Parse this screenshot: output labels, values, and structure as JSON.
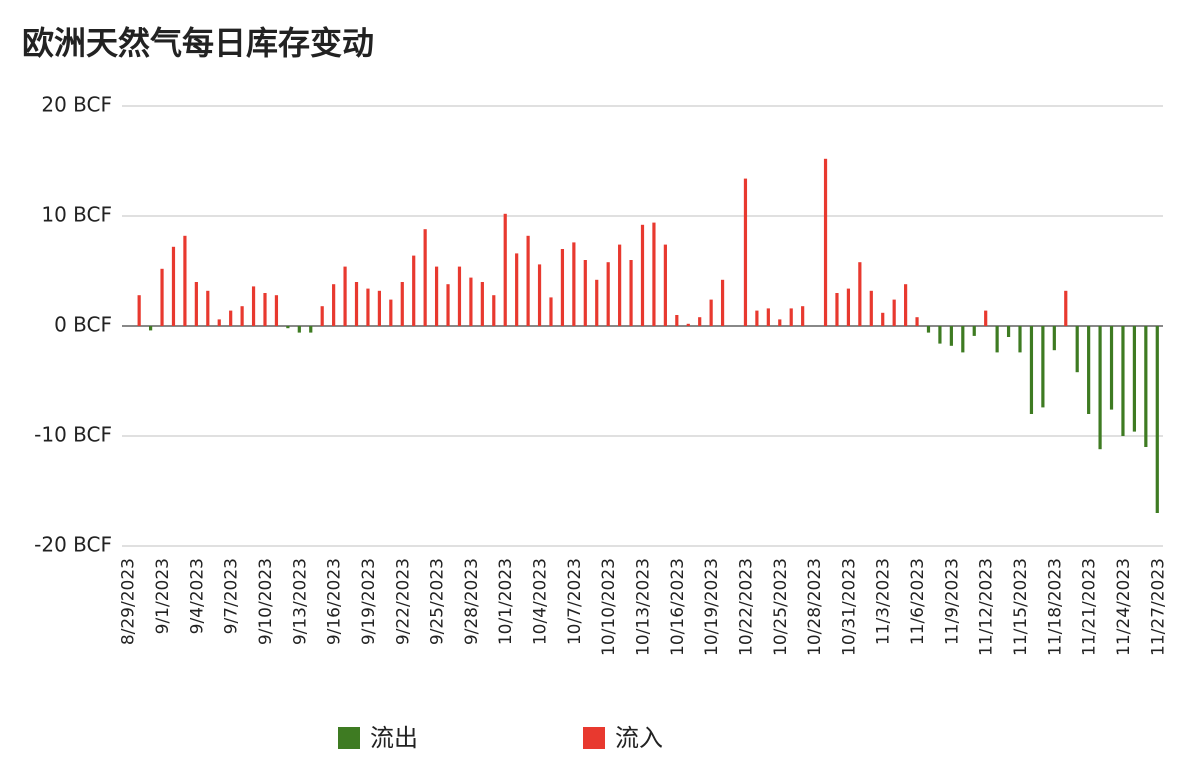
{
  "chart_data": {
    "type": "bar",
    "title": "欧洲天然气每日库存变动",
    "categories": [
      "8/29/2023",
      null,
      null,
      "9/1/2023",
      null,
      null,
      "9/4/2023",
      null,
      null,
      "9/7/2023",
      null,
      null,
      "9/10/2023",
      null,
      null,
      "9/13/2023",
      null,
      null,
      "9/16/2023",
      null,
      null,
      "9/19/2023",
      null,
      null,
      "9/22/2023",
      null,
      null,
      "9/25/2023",
      null,
      null,
      "9/28/2023",
      null,
      null,
      "10/1/2023",
      null,
      null,
      "10/4/2023",
      null,
      null,
      "10/7/2023",
      null,
      null,
      "10/10/2023",
      null,
      null,
      "10/13/2023",
      null,
      null,
      "10/16/2023",
      null,
      null,
      "10/19/2023",
      null,
      null,
      "10/22/2023",
      null,
      null,
      "10/25/2023",
      null,
      null,
      "10/28/2023",
      null,
      null,
      "10/31/2023",
      null,
      null,
      "11/3/2023",
      null,
      null,
      "11/6/2023",
      null,
      null,
      "11/9/2023",
      null,
      null,
      "11/12/2023",
      null,
      null,
      "11/15/2023",
      null,
      null,
      "11/18/2023",
      null,
      null,
      "11/21/2023",
      null,
      null,
      "11/24/2023",
      null,
      null,
      "11/27/2023"
    ],
    "series": [
      {
        "name": "流出",
        "color": "#3e7b22",
        "values": [
          null,
          null,
          -0.4,
          null,
          null,
          null,
          null,
          null,
          null,
          null,
          null,
          null,
          null,
          null,
          -0.2,
          -0.6,
          -0.6,
          null,
          null,
          null,
          null,
          null,
          null,
          null,
          null,
          null,
          null,
          null,
          null,
          null,
          null,
          null,
          null,
          null,
          null,
          null,
          null,
          null,
          null,
          null,
          null,
          null,
          null,
          null,
          null,
          null,
          null,
          null,
          null,
          null,
          null,
          null,
          null,
          null,
          null,
          null,
          null,
          null,
          null,
          null,
          null,
          null,
          null,
          null,
          null,
          null,
          null,
          null,
          null,
          null,
          -0.6,
          -1.6,
          -1.8,
          -2.4,
          -0.9,
          null,
          -2.4,
          -1.0,
          -2.4,
          -8.0,
          -7.4,
          -2.2,
          null,
          -4.2,
          -8.0,
          -11.2,
          -7.6,
          -10.0,
          -9.6,
          -11.0,
          -17.0
        ]
      },
      {
        "name": "流入",
        "color": "#e8392f",
        "values": [
          null,
          2.8,
          null,
          5.2,
          7.2,
          8.2,
          4.0,
          3.2,
          0.6,
          1.4,
          1.8,
          3.6,
          3.0,
          2.8,
          null,
          null,
          null,
          1.8,
          3.8,
          5.4,
          4.0,
          3.4,
          3.2,
          2.4,
          4.0,
          6.4,
          8.8,
          5.4,
          3.8,
          5.4,
          4.4,
          4.0,
          2.8,
          10.2,
          6.6,
          8.2,
          5.6,
          2.6,
          7.0,
          7.6,
          6.0,
          4.2,
          5.8,
          7.4,
          6.0,
          9.2,
          9.4,
          7.4,
          1.0,
          0.2,
          0.8,
          2.4,
          4.2,
          null,
          13.4,
          1.4,
          1.6,
          0.6,
          1.6,
          1.8,
          null,
          15.2,
          3.0,
          3.4,
          5.8,
          3.2,
          1.2,
          2.4,
          3.8,
          0.8,
          null,
          null,
          null,
          null,
          null,
          1.4,
          null,
          null,
          null,
          null,
          null,
          null,
          3.2,
          null,
          null,
          null,
          null,
          null,
          null,
          null,
          null
        ]
      }
    ],
    "ylim": [
      -20,
      20
    ],
    "yticks": [
      {
        "value": -20,
        "label": "-20 BCF"
      },
      {
        "value": -10,
        "label": "-10 BCF"
      },
      {
        "value": 0,
        "label": "0 BCF"
      },
      {
        "value": 10,
        "label": "10 BCF"
      },
      {
        "value": 20,
        "label": "20 BCF"
      }
    ],
    "grid": true
  }
}
